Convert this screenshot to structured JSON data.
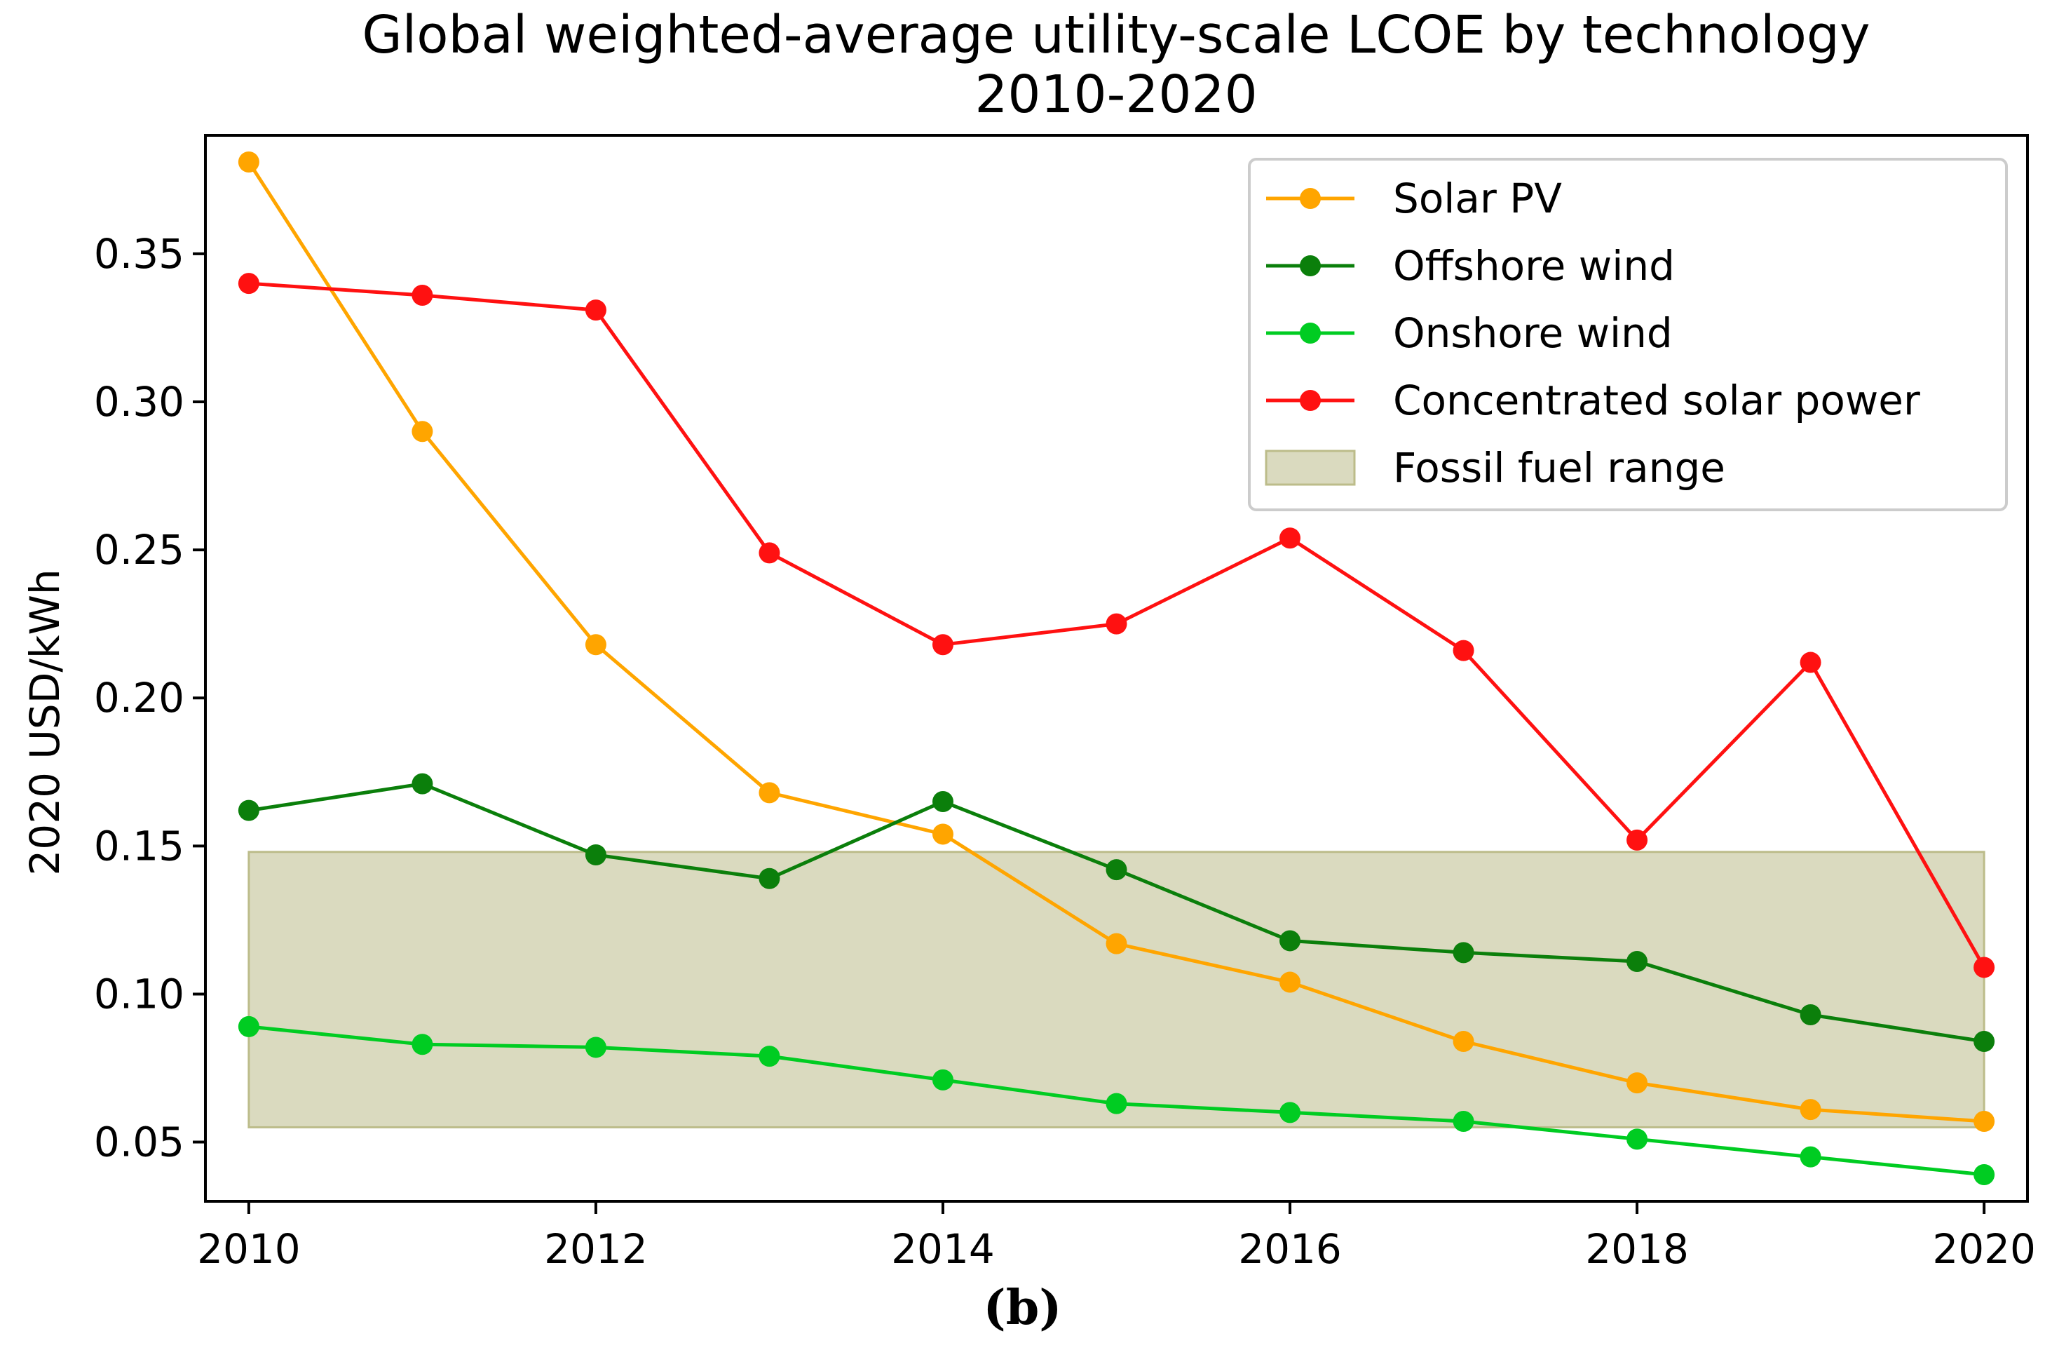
{
  "chart_data": {
    "type": "line",
    "title": "Global weighted-average utility-scale LCOE by technology",
    "subtitle": "2010-2020",
    "xlabel": "",
    "ylabel": "2020 USD/kWh",
    "x": [
      2010,
      2011,
      2012,
      2013,
      2014,
      2015,
      2016,
      2017,
      2018,
      2019,
      2020
    ],
    "xlim": [
      2009.75,
      2020.25
    ],
    "ylim": [
      0.03,
      0.39
    ],
    "xticks": [
      "2010",
      "2012",
      "2014",
      "2016",
      "2018",
      "2020"
    ],
    "yticks": [
      "0.05",
      "0.10",
      "0.15",
      "0.20",
      "0.25",
      "0.30",
      "0.35"
    ],
    "grid": false,
    "legend_position": "top-right",
    "series": [
      {
        "name": "Solar PV",
        "color": "#ffa500",
        "values": [
          0.381,
          0.29,
          0.218,
          0.168,
          0.154,
          0.117,
          0.104,
          0.084,
          0.07,
          0.061,
          0.057
        ]
      },
      {
        "name": "Offshore wind",
        "color": "#0b7f0b",
        "values": [
          0.162,
          0.171,
          0.147,
          0.139,
          0.165,
          0.142,
          0.118,
          0.114,
          0.111,
          0.093,
          0.084
        ]
      },
      {
        "name": "Onshore wind",
        "color": "#00cc22",
        "values": [
          0.089,
          0.083,
          0.082,
          0.079,
          0.071,
          0.063,
          0.06,
          0.057,
          0.051,
          0.045,
          0.039
        ]
      },
      {
        "name": "Concentrated solar power",
        "color": "#ff1111",
        "values": [
          0.34,
          0.336,
          0.331,
          0.249,
          0.218,
          0.225,
          0.254,
          0.216,
          0.152,
          0.212,
          0.109
        ]
      }
    ],
    "band": {
      "name": "Fossil fuel range",
      "color": "#bcbc8a",
      "x_start": 2010,
      "x_end": 2020,
      "y_low": 0.055,
      "y_high": 0.148
    }
  },
  "caption": "(b)"
}
